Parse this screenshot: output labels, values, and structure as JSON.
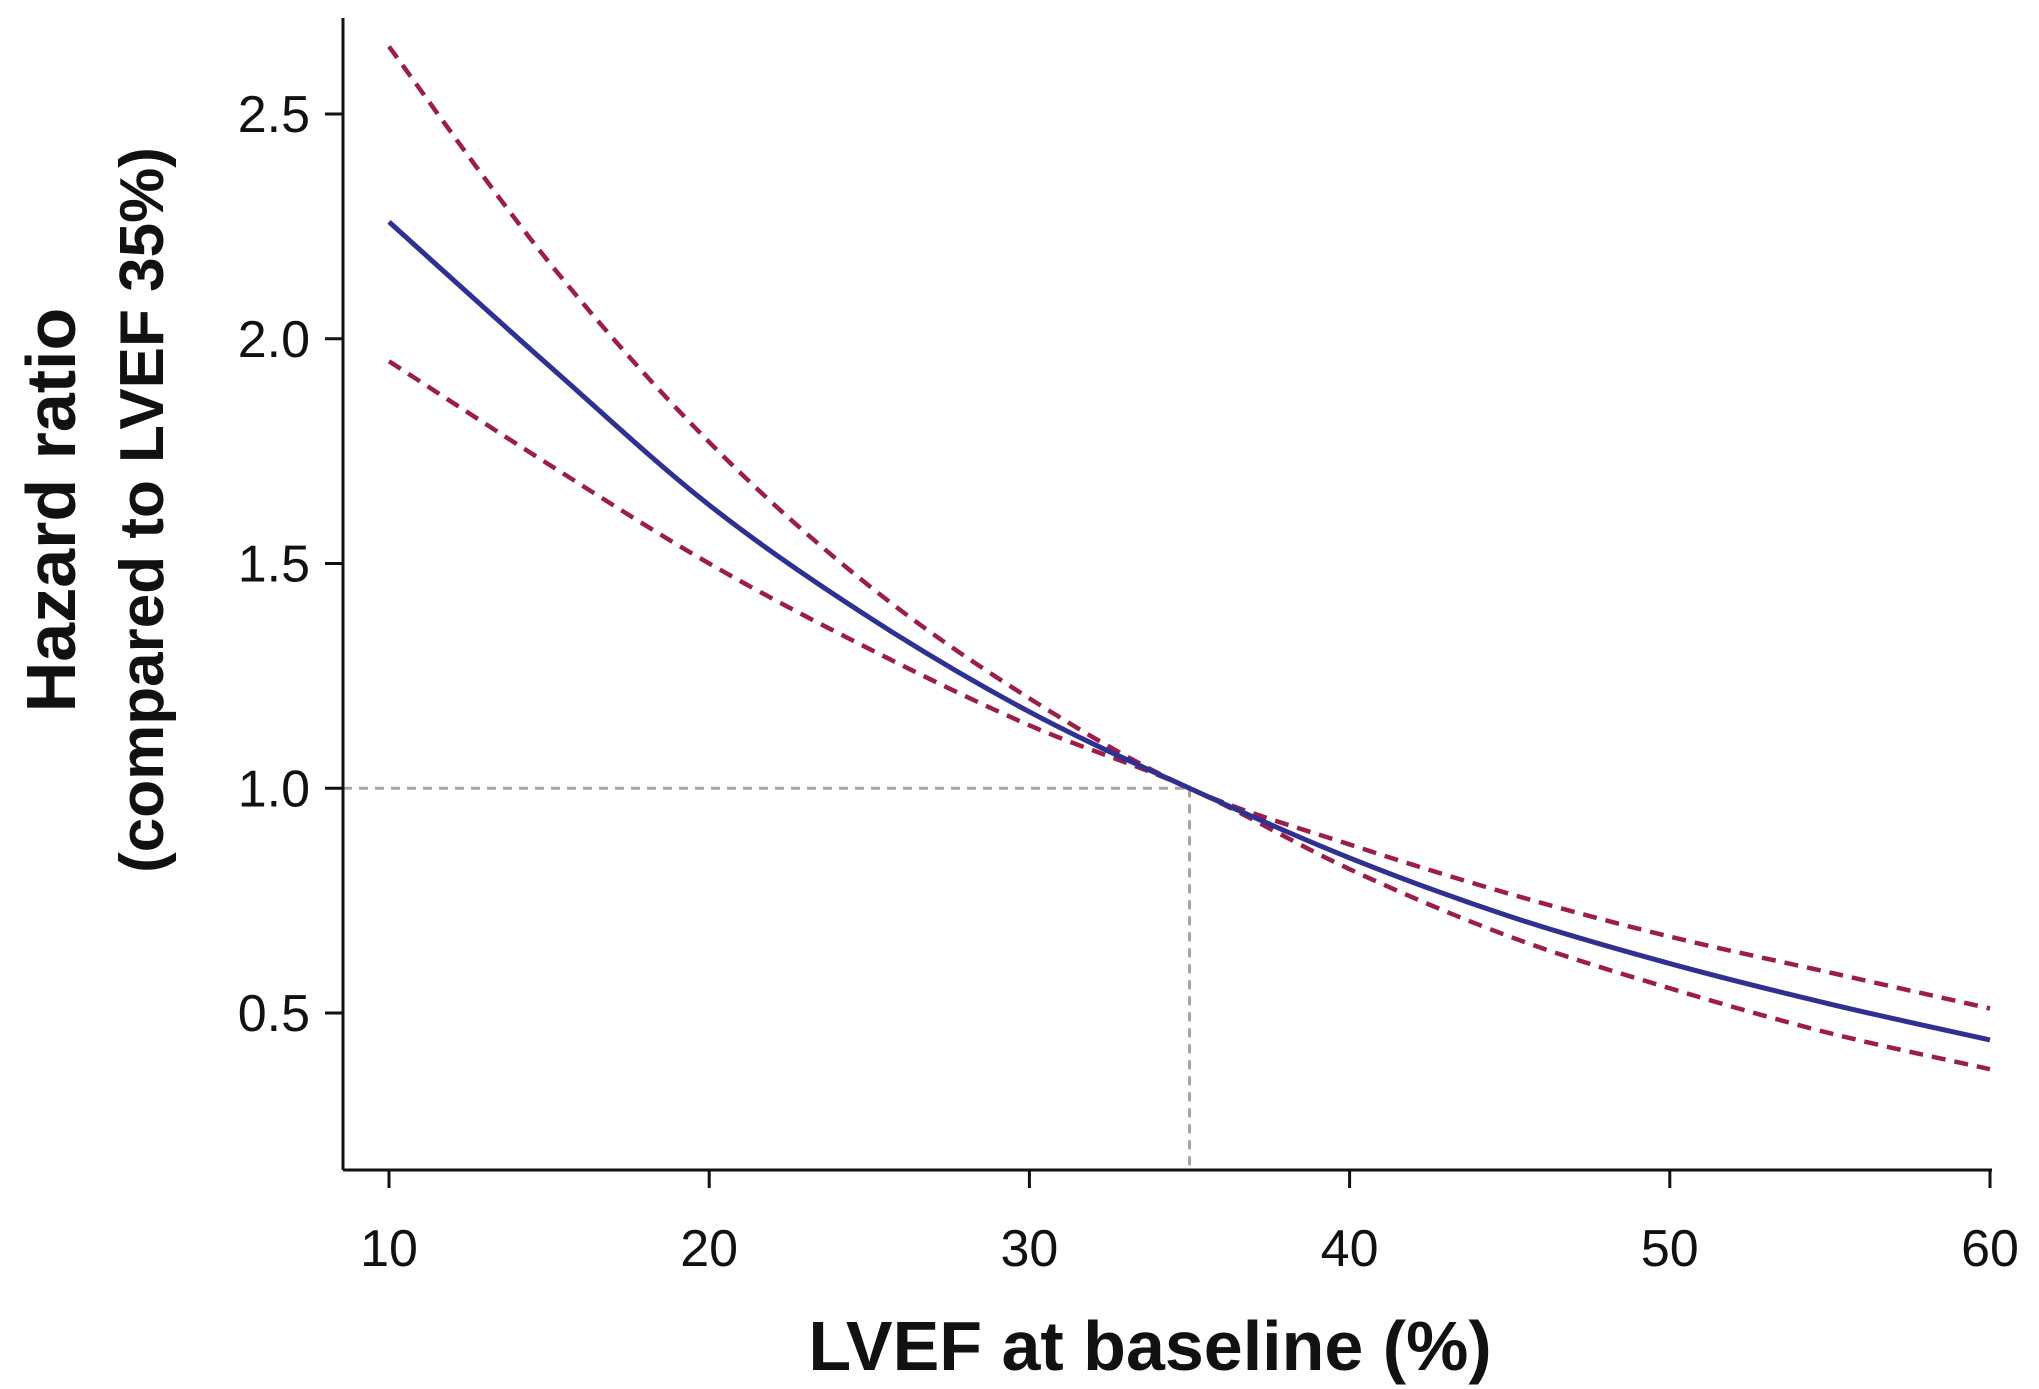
{
  "chart_data": {
    "type": "line",
    "xlabel": "LVEF at baseline (%)",
    "ylabel_line1": "Hazard ratio",
    "ylabel_line2": "(compared to LVEF 35%)",
    "xlim": [
      10,
      60
    ],
    "ylim": [
      0.2,
      2.75
    ],
    "x_ticks": [
      10,
      20,
      30,
      40,
      50,
      60
    ],
    "x_tick_labels": [
      "10",
      "20",
      "30",
      "40",
      "50",
      "60"
    ],
    "y_ticks": [
      0.5,
      1.0,
      1.5,
      2.0,
      2.5
    ],
    "y_tick_labels": [
      "0.5",
      "1.0",
      "1.5",
      "2.0",
      "2.5"
    ],
    "grid": false,
    "reference": {
      "x": 35,
      "y": 1.0,
      "color": "#a6a6a6",
      "style": "dashed"
    },
    "x": [
      10,
      15,
      20,
      25,
      30,
      35,
      40,
      45,
      50,
      55,
      60
    ],
    "series": [
      {
        "role": "estimate",
        "style": "solid",
        "color": "#2e3192",
        "values": [
          2.26,
          1.94,
          1.63,
          1.38,
          1.17,
          1.0,
          0.845,
          0.715,
          0.61,
          0.52,
          0.44
        ]
      },
      {
        "role": "upper_ci",
        "style": "dashed",
        "color": "#9b1d48",
        "values": [
          2.65,
          2.17,
          1.77,
          1.45,
          1.2,
          1.0,
          0.875,
          0.765,
          0.67,
          0.59,
          0.51
        ]
      },
      {
        "role": "lower_ci",
        "style": "dashed",
        "color": "#9b1d48",
        "values": [
          1.95,
          1.72,
          1.5,
          1.31,
          1.14,
          1.0,
          0.82,
          0.67,
          0.555,
          0.455,
          0.375
        ]
      }
    ]
  }
}
